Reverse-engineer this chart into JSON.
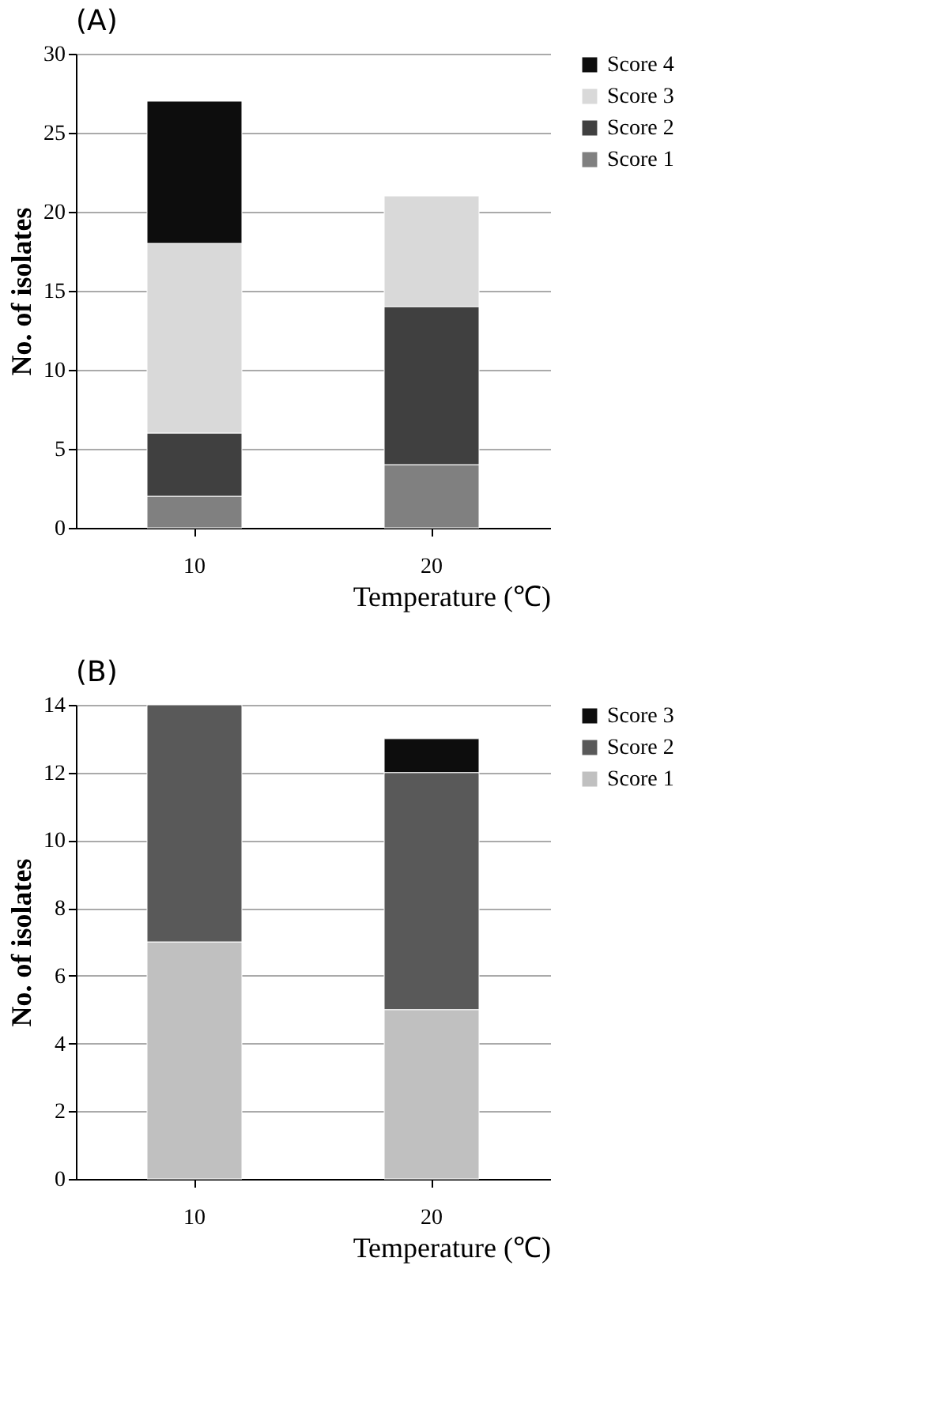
{
  "chart_data": [
    {
      "type": "bar",
      "title": "(A)",
      "xlabel": "Temperature (℃)",
      "ylabel": "No. of isolates",
      "categories": [
        "10",
        "20"
      ],
      "stacked": true,
      "ylim": [
        0,
        30
      ],
      "yticks": [
        0,
        5,
        10,
        15,
        20,
        25,
        30
      ],
      "grid": "y",
      "legend": "right",
      "series": [
        {
          "name": "Score 1",
          "color": "#808080",
          "values": [
            2,
            4
          ]
        },
        {
          "name": "Score 2",
          "color": "#404040",
          "values": [
            4,
            10
          ]
        },
        {
          "name": "Score 3",
          "color": "#d9d9d9",
          "values": [
            12,
            7
          ]
        },
        {
          "name": "Score 4",
          "color": "#0d0d0d",
          "values": [
            9,
            null
          ]
        }
      ]
    },
    {
      "type": "bar",
      "title": "(B)",
      "xlabel": "Temperature (℃)",
      "ylabel": "No. of isolates",
      "categories": [
        "10",
        "20"
      ],
      "stacked": true,
      "ylim": [
        0,
        14
      ],
      "yticks": [
        0,
        2,
        4,
        6,
        8,
        10,
        12,
        14
      ],
      "grid": "y",
      "legend": "right",
      "series": [
        {
          "name": "Score 1",
          "color": "#c0c0c0",
          "values": [
            7,
            5
          ]
        },
        {
          "name": "Score 2",
          "color": "#595959",
          "values": [
            7,
            7
          ]
        },
        {
          "name": "Score 3",
          "color": "#0d0d0d",
          "values": [
            null,
            1
          ]
        }
      ]
    }
  ]
}
